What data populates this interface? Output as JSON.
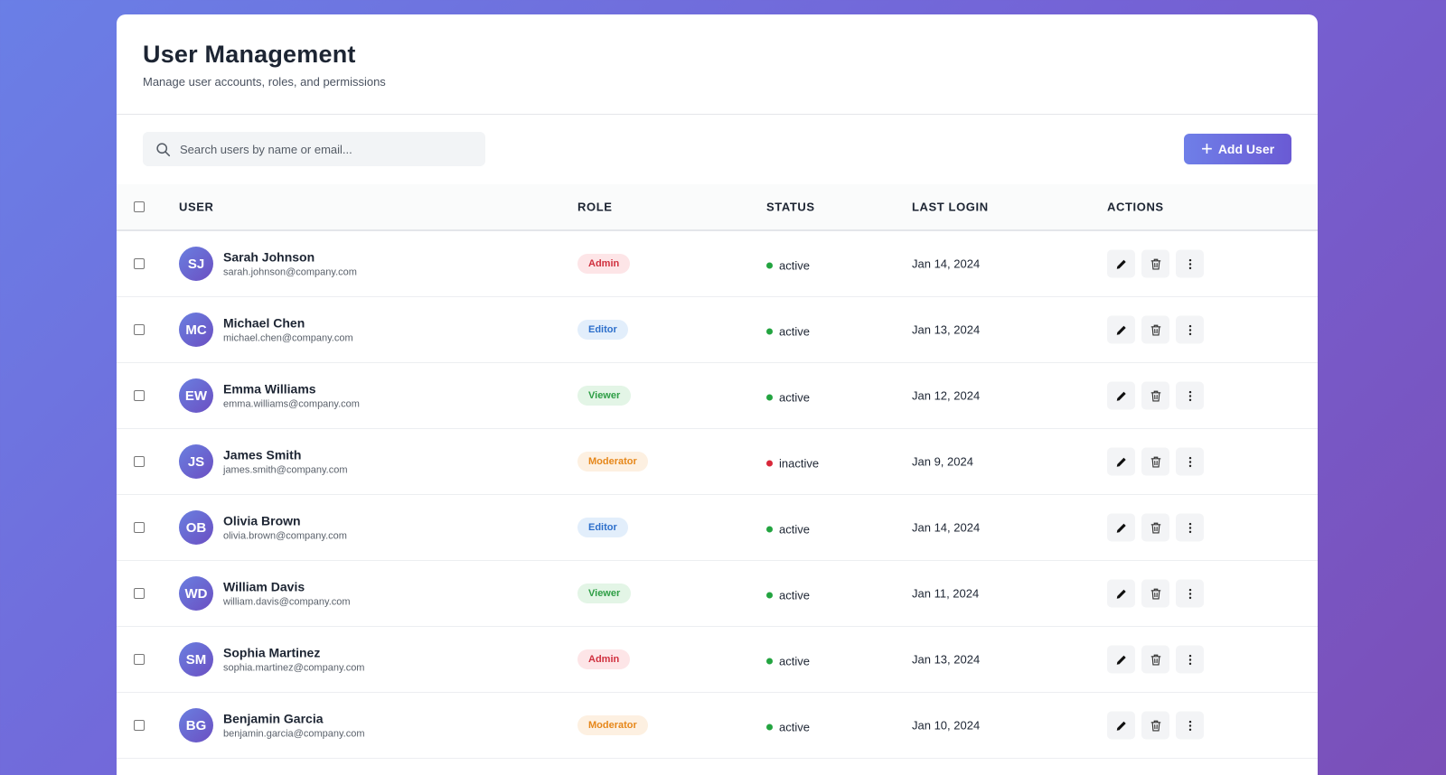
{
  "header": {
    "title": "User Management",
    "subtitle": "Manage user accounts, roles, and permissions"
  },
  "toolbar": {
    "search_placeholder": "Search users by name or email...",
    "add_user_label": "Add User"
  },
  "table": {
    "columns": [
      "USER",
      "ROLE",
      "STATUS",
      "LAST LOGIN",
      "ACTIONS"
    ],
    "rows": [
      {
        "initials": "SJ",
        "name": "Sarah Johnson",
        "email": "sarah.johnson@company.com",
        "role": "Admin",
        "status": "active",
        "last_login": "Jan 14, 2024"
      },
      {
        "initials": "MC",
        "name": "Michael Chen",
        "email": "michael.chen@company.com",
        "role": "Editor",
        "status": "active",
        "last_login": "Jan 13, 2024"
      },
      {
        "initials": "EW",
        "name": "Emma Williams",
        "email": "emma.williams@company.com",
        "role": "Viewer",
        "status": "active",
        "last_login": "Jan 12, 2024"
      },
      {
        "initials": "JS",
        "name": "James Smith",
        "email": "james.smith@company.com",
        "role": "Moderator",
        "status": "inactive",
        "last_login": "Jan 9, 2024"
      },
      {
        "initials": "OB",
        "name": "Olivia Brown",
        "email": "olivia.brown@company.com",
        "role": "Editor",
        "status": "active",
        "last_login": "Jan 14, 2024"
      },
      {
        "initials": "WD",
        "name": "William Davis",
        "email": "william.davis@company.com",
        "role": "Viewer",
        "status": "active",
        "last_login": "Jan 11, 2024"
      },
      {
        "initials": "SM",
        "name": "Sophia Martinez",
        "email": "sophia.martinez@company.com",
        "role": "Admin",
        "status": "active",
        "last_login": "Jan 13, 2024"
      },
      {
        "initials": "BG",
        "name": "Benjamin Garcia",
        "email": "benjamin.garcia@company.com",
        "role": "Moderator",
        "status": "active",
        "last_login": "Jan 10, 2024"
      }
    ]
  },
  "icons": {
    "search": "search-icon",
    "add": "plus-icon",
    "edit": "pencil-icon",
    "delete": "trash-icon",
    "more": "more-vertical-icon"
  },
  "colors": {
    "accent": "#6a6fe0",
    "status_active": "#23a440",
    "status_inactive": "#d8283a",
    "role_admin": "#d0303e",
    "role_editor": "#2d6fcb",
    "role_viewer": "#2e9e45",
    "role_moderator": "#e6871a"
  }
}
